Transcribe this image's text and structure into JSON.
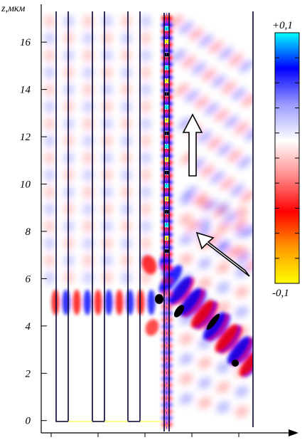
{
  "axis": {
    "z_label": "z,мкм",
    "ticks": [
      "0",
      "2",
      "4",
      "6",
      "8",
      "10",
      "12",
      "14",
      "16"
    ],
    "tick_values": [
      0,
      2,
      4,
      6,
      8,
      10,
      12,
      14,
      16
    ],
    "range": [
      -0.4,
      17.3
    ]
  },
  "colorbar": {
    "max_label": "+0,1",
    "min_label": "-0,1",
    "range": [
      -0.1,
      0.1
    ],
    "stops": [
      "#ffff00",
      "#ff9900",
      "#ff0000",
      "#ff8c8c",
      "#ffffff",
      "#9a9aff",
      "#0000ff",
      "#00ffff"
    ]
  },
  "colors": {
    "positive_field": "#0000ff",
    "negative_field": "#ff0000",
    "structure_lines": "#000033"
  },
  "arrows": [
    {
      "name": "incident-direction",
      "direction": "up-left"
    },
    {
      "name": "propagation-direction",
      "direction": "up"
    }
  ]
}
